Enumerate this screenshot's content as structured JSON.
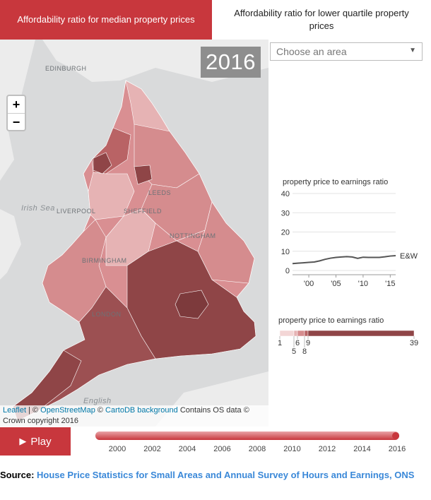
{
  "tabs": [
    {
      "label": "Affordability ratio for median property prices",
      "active": true
    },
    {
      "label": "Affordability ratio for lower quartile property prices",
      "active": false
    }
  ],
  "map": {
    "year": "2016",
    "zoom_in": "+",
    "zoom_out": "−",
    "place_labels": [
      "EDINBURGH",
      "Irish Sea",
      "LIVERPOOL",
      "LEEDS",
      "SHEFFIELD",
      "NOTTINGHAM",
      "BIRMINGHAM",
      "LONDON",
      "English"
    ],
    "attribution": {
      "leaflet": "Leaflet",
      "sep1": " | © ",
      "osm": "OpenStreetMap",
      "sep2": " © ",
      "carto": "CartoDB background",
      "rest": " Contains OS data © Crown copyright 2016"
    },
    "colors": {
      "sea": "#d9dadb",
      "land": "#ececec",
      "low": "#f3d6d6",
      "high": "#8f4547"
    }
  },
  "area_select": {
    "placeholder": "Choose an area",
    "arrow": "▼"
  },
  "chart_data": {
    "type": "line",
    "title": "property price to earnings ratio",
    "x": [
      1997,
      1998,
      1999,
      2000,
      2001,
      2002,
      2003,
      2004,
      2005,
      2006,
      2007,
      2008,
      2009,
      2010,
      2011,
      2012,
      2013,
      2014,
      2015,
      2016
    ],
    "series": [
      {
        "name": "E&W",
        "values": [
          3.6,
          3.8,
          4.0,
          4.2,
          4.4,
          5.0,
          5.8,
          6.4,
          6.8,
          7.0,
          7.2,
          7.0,
          6.3,
          6.9,
          6.8,
          6.8,
          6.8,
          7.1,
          7.5,
          7.7
        ]
      }
    ],
    "ylim": [
      0,
      40
    ],
    "yticks": [
      "0",
      "10",
      "20",
      "30",
      "40"
    ],
    "xticks": [
      {
        "year": 2000,
        "label": "'00"
      },
      {
        "year": 2005,
        "label": "'05"
      },
      {
        "year": 2010,
        "label": "'10"
      },
      {
        "year": 2015,
        "label": "'15"
      }
    ],
    "color": "#555555"
  },
  "legend": {
    "title": "property price to earnings ratio",
    "labels": [
      "1",
      "5",
      "6",
      "8",
      "9",
      "39"
    ],
    "breaks": [
      1,
      5,
      6,
      8,
      9,
      39
    ],
    "colors": [
      "#f3d6d6",
      "#e6b3b4",
      "#d58c8e",
      "#b96365",
      "#8f4547"
    ]
  },
  "playback": {
    "play_label": "Play",
    "play_icon": "play-icon",
    "years": [
      "2000",
      "2002",
      "2004",
      "2006",
      "2008",
      "2010",
      "2012",
      "2014",
      "2016"
    ],
    "progress": 1.0,
    "accent": "#c8373d"
  },
  "source": {
    "prefix": "Source:",
    "link": "House Price Statistics for Small Areas and Annual Survey of Hours and Earnings, ONS"
  }
}
